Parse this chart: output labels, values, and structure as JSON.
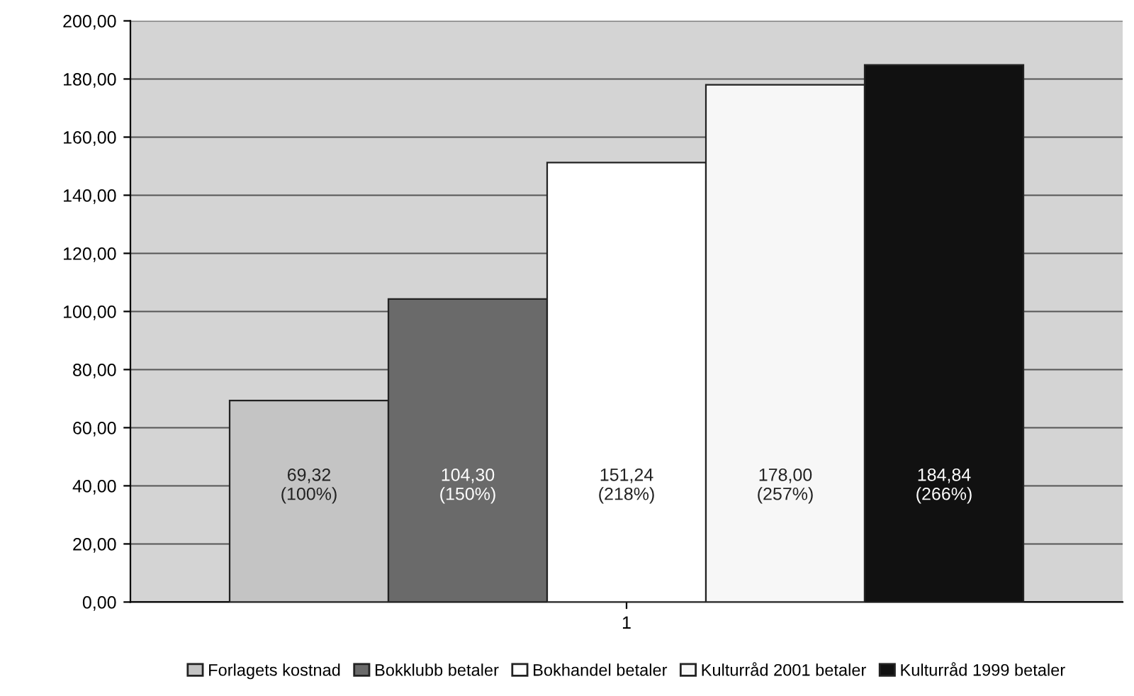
{
  "chart_data": {
    "type": "bar",
    "categories": [
      "1"
    ],
    "series": [
      {
        "name": "Forlagets kostnad",
        "color": "#c4c4c4",
        "values": [
          69.32
        ],
        "value_labels": [
          "69,32\n(100%)"
        ]
      },
      {
        "name": "Bokklubb betaler",
        "color": "#6a6a6a",
        "values": [
          104.3
        ],
        "value_labels": [
          "104,30\n(150%)"
        ]
      },
      {
        "name": "Bokhandel betaler",
        "color": "#ffffff",
        "values": [
          151.24
        ],
        "value_labels": [
          "151,24\n(218%)"
        ]
      },
      {
        "name": "Kulturråd 2001 betaler",
        "color": "#f7f7f7",
        "values": [
          178.0
        ],
        "value_labels": [
          "178,00\n(257%)"
        ]
      },
      {
        "name": "Kulturråd 1999 betaler",
        "color": "#111111",
        "values": [
          184.84
        ],
        "value_labels": [
          "184,84\n(266%)"
        ]
      }
    ],
    "ylim": [
      0,
      200
    ],
    "yticks": [
      {
        "value": 0,
        "label": "0,00"
      },
      {
        "value": 20,
        "label": "20,00"
      },
      {
        "value": 40,
        "label": "40,00"
      },
      {
        "value": 60,
        "label": "60,00"
      },
      {
        "value": 80,
        "label": "80,00"
      },
      {
        "value": 100,
        "label": "100,00"
      },
      {
        "value": 120,
        "label": "120,00"
      },
      {
        "value": 140,
        "label": "140,00"
      },
      {
        "value": 160,
        "label": "160,00"
      },
      {
        "value": 180,
        "label": "180,00"
      },
      {
        "value": 200,
        "label": "200,00"
      }
    ],
    "grid": "y",
    "legend": "bottom"
  }
}
